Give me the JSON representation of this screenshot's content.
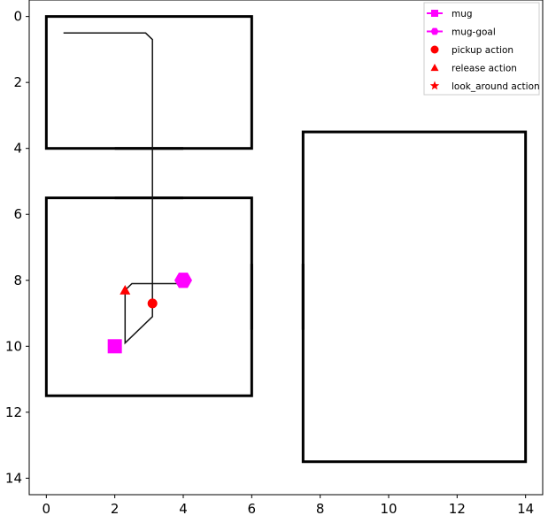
{
  "chart_data": {
    "type": "scatter",
    "title": "",
    "xlabel": "",
    "ylabel": "",
    "xlim": [
      -0.5,
      14.5
    ],
    "ylim": [
      14.5,
      -0.5
    ],
    "y_inverted": true,
    "grid": false,
    "legend_placement": "top-right",
    "xticks": [
      0,
      2,
      4,
      6,
      8,
      10,
      12,
      14
    ],
    "yticks": [
      0,
      2,
      4,
      6,
      8,
      10,
      12,
      14
    ],
    "rooms": [
      {
        "x0": 0,
        "y0": 0,
        "x1": 6,
        "y1": 4
      },
      {
        "x0": 0,
        "y0": 5.5,
        "x1": 6,
        "y1": 11.5
      },
      {
        "x0": 7.5,
        "y0": 3.5,
        "x1": 14,
        "y1": 13.5
      }
    ],
    "corridors": [
      {
        "x0": 2,
        "y0": 4,
        "x1": 4,
        "y1": 5.5
      },
      {
        "x0": 6,
        "y0": 7.5,
        "x1": 7.5,
        "y1": 9.5
      }
    ],
    "trajectory": [
      [
        0.5,
        0.5
      ],
      [
        2.9,
        0.5
      ],
      [
        3.1,
        0.7
      ],
      [
        3.1,
        9.1
      ],
      [
        2.3,
        9.9
      ],
      [
        2.3,
        8.3
      ],
      [
        2.5,
        8.1
      ],
      [
        4.0,
        8.1
      ]
    ],
    "series": [
      {
        "name": "mug",
        "marker": "square",
        "color": "#ff00ff",
        "x": [
          2.0
        ],
        "y": [
          10.0
        ]
      },
      {
        "name": "mug-goal",
        "marker": "hexagon",
        "color": "#ff00ff",
        "x": [
          4.0
        ],
        "y": [
          8.0
        ]
      },
      {
        "name": "pickup action",
        "marker": "circle",
        "color": "#ff0000",
        "x": [
          3.1
        ],
        "y": [
          8.7
        ]
      },
      {
        "name": "release action",
        "marker": "triangle",
        "color": "#ff0000",
        "x": [
          2.3
        ],
        "y": [
          8.3
        ]
      },
      {
        "name": "look_around action",
        "marker": "star",
        "color": "#ff0000",
        "x": [],
        "y": []
      }
    ]
  }
}
